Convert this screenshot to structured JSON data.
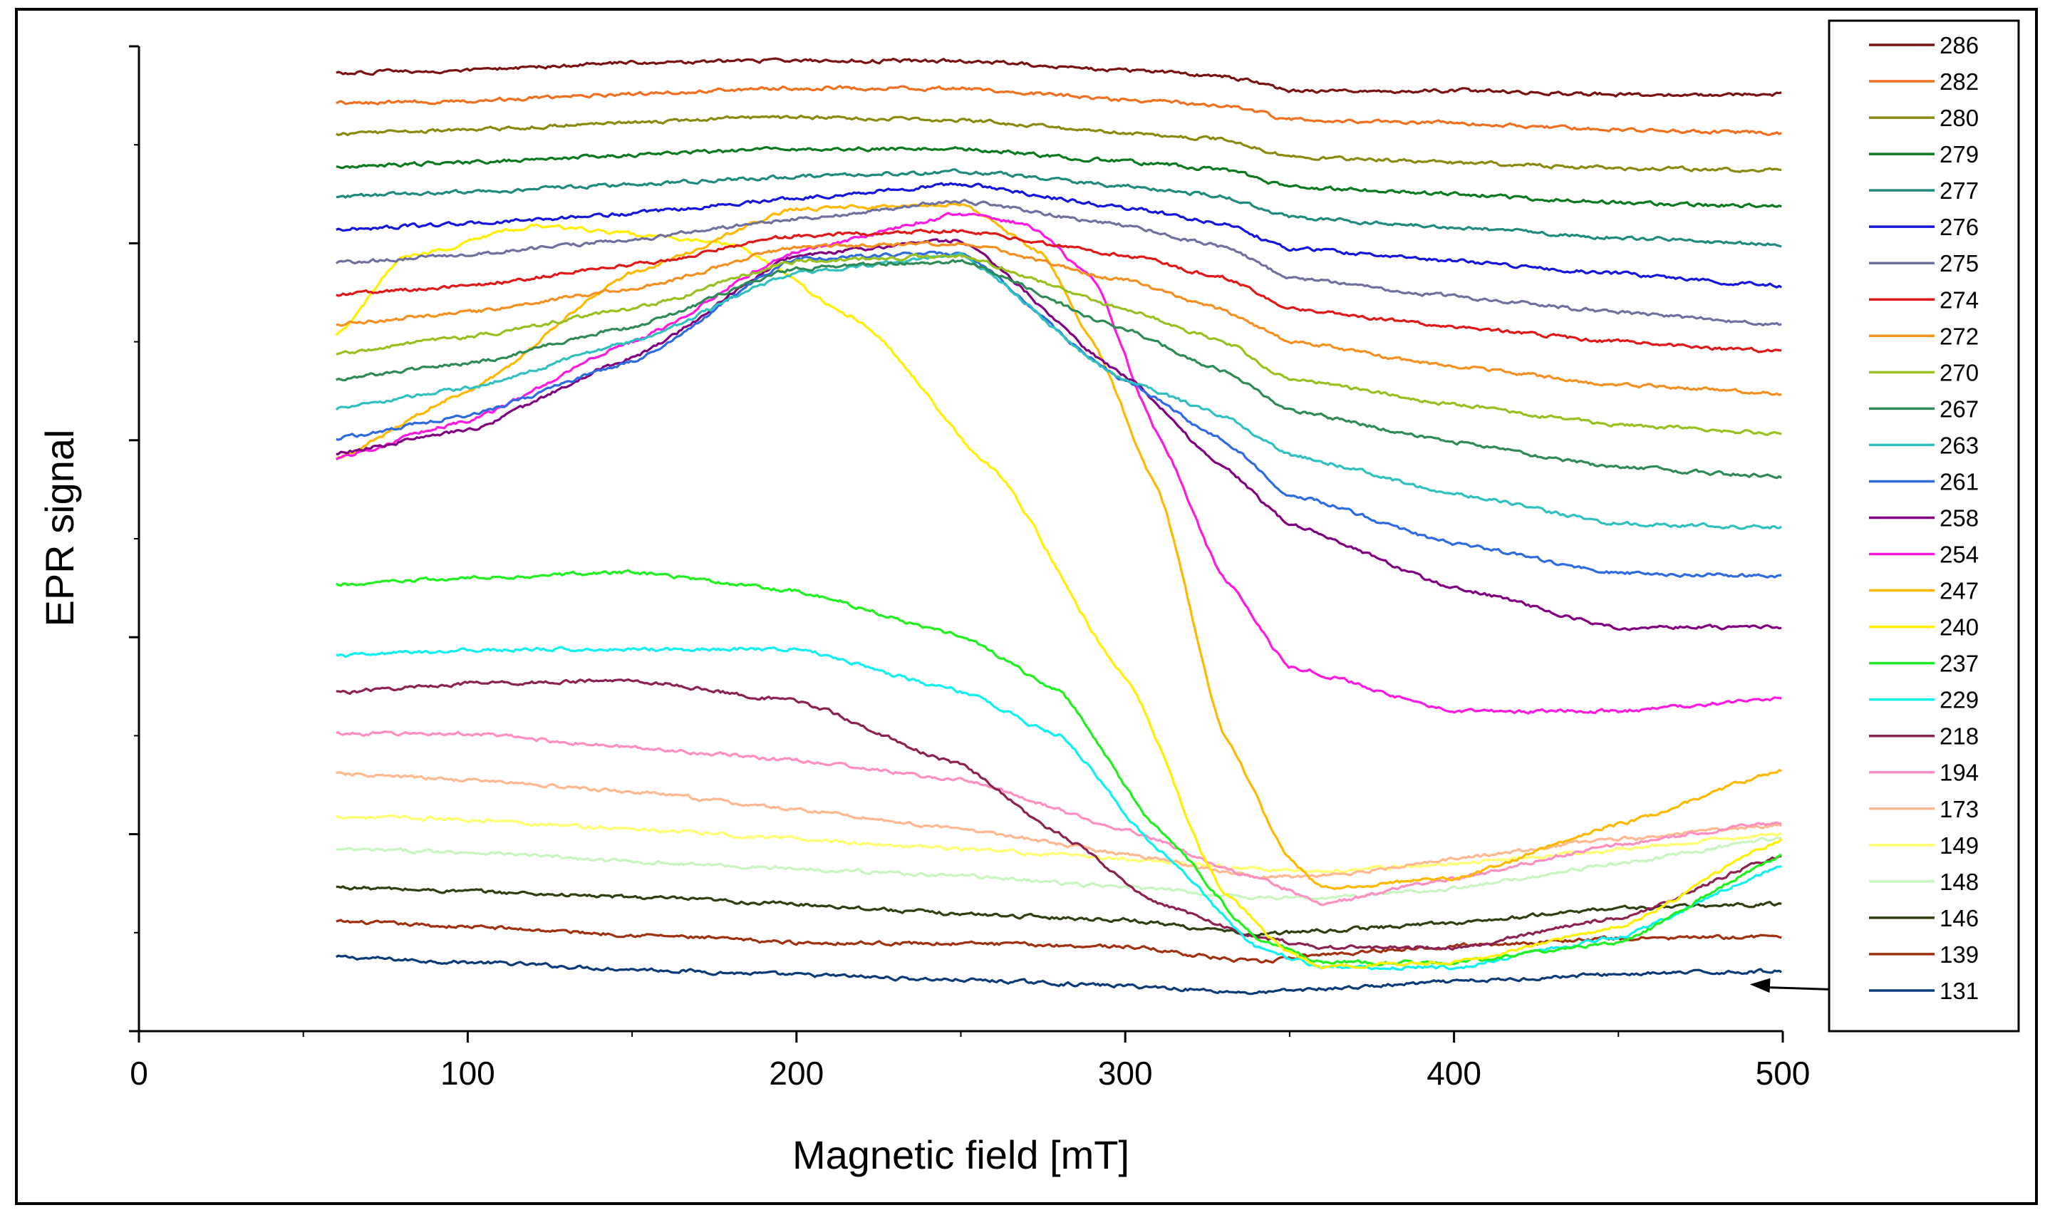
{
  "chart_data": {
    "type": "line",
    "xlabel": "Magnetic field  [mT]",
    "ylabel": "EPR  signal",
    "xlim": [
      0,
      500
    ],
    "ylim": [
      0,
      100
    ],
    "x_ticks": [
      "0",
      "100",
      "200",
      "300",
      "400",
      "500"
    ],
    "y_tick_labels_shown": false,
    "legend_position": "right",
    "legend_title": "",
    "annotation": "arrow pointing from legend entry 131 to the 131 trace near 490 mT",
    "series": [
      {
        "name": "286",
        "color": "#7B1212",
        "x": [
          60,
          100,
          150,
          200,
          250,
          300,
          330,
          350,
          400,
          450,
          500
        ],
        "y": [
          97.3,
          97.6,
          98.3,
          98.6,
          98.5,
          97.6,
          97,
          95.5,
          95.5,
          95.1,
          95.1
        ]
      },
      {
        "name": "282",
        "color": "#F07020",
        "x": [
          60,
          100,
          150,
          200,
          250,
          300,
          330,
          350,
          400,
          450,
          500
        ],
        "y": [
          94.2,
          94.5,
          95.2,
          95.8,
          95.7,
          94.6,
          94,
          92.6,
          92.2,
          91.5,
          91.2
        ]
      },
      {
        "name": "280",
        "color": "#8A8A10",
        "x": [
          60,
          100,
          150,
          200,
          250,
          300,
          330,
          350,
          400,
          450,
          500
        ],
        "y": [
          91.1,
          91.5,
          92.3,
          92.8,
          92.5,
          91.2,
          90.6,
          88.8,
          88.2,
          87.6,
          87.4
        ]
      },
      {
        "name": "279",
        "color": "#0A7A1E",
        "x": [
          60,
          100,
          150,
          200,
          250,
          300,
          330,
          350,
          400,
          450,
          500
        ],
        "y": [
          87.8,
          88.2,
          89.0,
          89.6,
          89.6,
          88.3,
          87.5,
          85.7,
          85.0,
          84.1,
          83.7
        ]
      },
      {
        "name": "277",
        "color": "#1F8B7F",
        "x": [
          60,
          100,
          150,
          200,
          250,
          300,
          330,
          350,
          400,
          450,
          500
        ],
        "y": [
          84.7,
          85.2,
          86.0,
          86.8,
          87.3,
          85.8,
          84.8,
          82.6,
          81.6,
          80.6,
          79.8
        ]
      },
      {
        "name": "276",
        "color": "#1515DD",
        "x": [
          60,
          100,
          150,
          200,
          250,
          300,
          330,
          350,
          400,
          450,
          500
        ],
        "y": [
          81.4,
          82.0,
          83.0,
          84.6,
          86.0,
          83.6,
          82.0,
          79.5,
          78.2,
          76.9,
          75.7
        ]
      },
      {
        "name": "275",
        "color": "#7070A0",
        "x": [
          60,
          100,
          150,
          200,
          250,
          300,
          330,
          350,
          400,
          450,
          500
        ],
        "y": [
          78.0,
          78.9,
          80.4,
          82.5,
          84.3,
          81.8,
          79.6,
          76.5,
          74.6,
          73.0,
          71.7
        ]
      },
      {
        "name": "274",
        "color": "#E01818",
        "x": [
          60,
          100,
          150,
          200,
          250,
          300,
          330,
          350,
          400,
          450,
          500
        ],
        "y": [
          74.8,
          75.7,
          77.8,
          80.8,
          81.3,
          78.8,
          76.5,
          73.4,
          71.5,
          70.0,
          69.0
        ]
      },
      {
        "name": "272",
        "color": "#F59020",
        "x": [
          60,
          100,
          150,
          200,
          250,
          300,
          330,
          350,
          400,
          450,
          500
        ],
        "y": [
          71.8,
          73.0,
          75.4,
          79.6,
          80.0,
          76.2,
          73.2,
          70.0,
          67.5,
          65.6,
          64.8
        ]
      },
      {
        "name": "270",
        "color": "#98C020",
        "x": [
          60,
          100,
          150,
          200,
          250,
          300,
          330,
          350,
          400,
          450,
          500
        ],
        "y": [
          68.8,
          70.5,
          73.3,
          78.2,
          78.7,
          73.3,
          70.0,
          66.2,
          63.6,
          61.5,
          60.7
        ]
      },
      {
        "name": "267",
        "color": "#2E8B57",
        "x": [
          60,
          100,
          150,
          200,
          250,
          300,
          330,
          350,
          400,
          450,
          500
        ],
        "y": [
          66.2,
          67.8,
          71.5,
          77.5,
          78.2,
          71.2,
          67.0,
          63.0,
          59.8,
          57.2,
          56.3
        ]
      },
      {
        "name": "263",
        "color": "#30C0C0",
        "x": [
          60,
          100,
          150,
          200,
          250,
          300,
          330,
          350,
          400,
          450,
          500
        ],
        "y": [
          63.2,
          65.3,
          70.0,
          77.0,
          78.8,
          66.0,
          62.5,
          58.5,
          54.6,
          51.5,
          51.2
        ]
      },
      {
        "name": "261",
        "color": "#2E6BE0",
        "x": [
          60,
          100,
          150,
          200,
          250,
          300,
          330,
          350,
          400,
          450,
          500
        ],
        "y": [
          60.2,
          62.5,
          68.0,
          78.5,
          79.0,
          66.0,
          60.0,
          54.5,
          49.5,
          46.5,
          46.2
        ]
      },
      {
        "name": "258",
        "color": "#800080",
        "x": [
          60,
          100,
          150,
          200,
          250,
          300,
          330,
          350,
          400,
          450,
          500
        ],
        "y": [
          58.7,
          61.0,
          68.4,
          78.8,
          80.3,
          66.5,
          57.2,
          51.5,
          45.0,
          41.0,
          41.0
        ]
      },
      {
        "name": "254",
        "color": "#FF18E0",
        "x": [
          60,
          100,
          150,
          200,
          250,
          270,
          290,
          310,
          330,
          350,
          400,
          450,
          500
        ],
        "y": [
          58.2,
          62.0,
          70.0,
          79.2,
          83.0,
          82.0,
          76.5,
          60.5,
          46.0,
          37.0,
          32.5,
          32.5,
          33.8
        ]
      },
      {
        "name": "247",
        "color": "#FFB800",
        "x": [
          60,
          100,
          150,
          200,
          250,
          275,
          290,
          310,
          330,
          350,
          360,
          400,
          450,
          500
        ],
        "y": [
          58.2,
          65.0,
          77.0,
          83.5,
          84.0,
          79.0,
          70.0,
          55.0,
          30.0,
          17.5,
          14.5,
          15.5,
          21.0,
          26.5
        ]
      },
      {
        "name": "240",
        "color": "#FFF000",
        "x": [
          60,
          80,
          120,
          180,
          220,
          260,
          300,
          330,
          350,
          360,
          400,
          450,
          500
        ],
        "y": [
          70.5,
          78.5,
          81.8,
          80.0,
          72.0,
          57.0,
          36.0,
          14.0,
          8.0,
          6.5,
          7.0,
          10.5,
          19.5
        ]
      },
      {
        "name": "237",
        "color": "#20F020",
        "x": [
          60,
          100,
          150,
          200,
          250,
          280,
          310,
          340,
          360,
          400,
          450,
          500
        ],
        "y": [
          45.3,
          46.0,
          46.6,
          44.7,
          40.2,
          34.5,
          20.5,
          9.5,
          7.0,
          7.0,
          9.0,
          17.8
        ]
      },
      {
        "name": "229",
        "color": "#10F0F0",
        "x": [
          60,
          100,
          150,
          200,
          250,
          280,
          310,
          340,
          360,
          400,
          450,
          500
        ],
        "y": [
          38.1,
          38.7,
          38.8,
          38.8,
          34.5,
          30.0,
          18.5,
          8.5,
          6.5,
          6.5,
          9.5,
          16.8
        ]
      },
      {
        "name": "218",
        "color": "#8B2252",
        "x": [
          60,
          100,
          150,
          200,
          250,
          280,
          310,
          340,
          360,
          400,
          450,
          500
        ],
        "y": [
          34.4,
          35.3,
          35.6,
          33.5,
          27.0,
          20.0,
          13.0,
          9.5,
          8.5,
          8.5,
          11.5,
          17.8
        ]
      },
      {
        "name": "194",
        "color": "#FF8FC0",
        "x": [
          60,
          100,
          150,
          200,
          250,
          300,
          340,
          360,
          400,
          450,
          500
        ],
        "y": [
          30.2,
          30.2,
          28.8,
          27.5,
          25.5,
          20.5,
          15.5,
          13.0,
          15.5,
          19.0,
          21.3
        ]
      },
      {
        "name": "173",
        "color": "#FFB890",
        "x": [
          60,
          100,
          150,
          200,
          250,
          300,
          340,
          360,
          400,
          450,
          500
        ],
        "y": [
          26.1,
          25.5,
          24.3,
          22.5,
          20.5,
          18.0,
          15.7,
          15.7,
          17.5,
          19.5,
          21.0
        ]
      },
      {
        "name": "149",
        "color": "#FFFF70",
        "x": [
          60,
          100,
          150,
          200,
          250,
          300,
          340,
          360,
          400,
          450,
          500
        ],
        "y": [
          21.8,
          21.5,
          20.5,
          19.5,
          18.5,
          17.5,
          16.5,
          16.2,
          17.0,
          18.5,
          20.0
        ]
      },
      {
        "name": "148",
        "color": "#C8F5C0",
        "x": [
          60,
          100,
          150,
          200,
          250,
          300,
          340,
          360,
          400,
          450,
          500
        ],
        "y": [
          18.4,
          18.2,
          17.2,
          16.5,
          15.8,
          14.6,
          13.6,
          13.5,
          14.5,
          17.0,
          19.6
        ]
      },
      {
        "name": "146",
        "color": "#2F3F0F",
        "x": [
          60,
          100,
          150,
          200,
          250,
          300,
          340,
          360,
          400,
          450,
          500
        ],
        "y": [
          14.6,
          14.2,
          13.6,
          12.9,
          11.9,
          11.3,
          9.8,
          10.2,
          11.0,
          12.5,
          12.9
        ]
      },
      {
        "name": "139",
        "color": "#A03010",
        "x": [
          60,
          100,
          150,
          200,
          250,
          300,
          340,
          360,
          400,
          450,
          500
        ],
        "y": [
          11.1,
          10.6,
          9.8,
          9.0,
          8.9,
          8.6,
          7.0,
          7.8,
          8.7,
          9.4,
          9.6
        ]
      },
      {
        "name": "131",
        "color": "#0A3A78",
        "x": [
          60,
          100,
          150,
          200,
          250,
          300,
          340,
          360,
          400,
          450,
          500
        ],
        "y": [
          7.5,
          7.0,
          6.3,
          5.7,
          5.2,
          4.6,
          3.9,
          4.3,
          5.0,
          5.8,
          6.1
        ]
      }
    ]
  }
}
